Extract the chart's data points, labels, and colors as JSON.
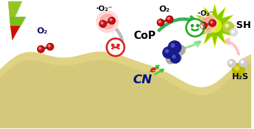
{
  "bg_color": "#ffffff",
  "surface_color": "#d4c87a",
  "surface_highlight": "#e8d98a",
  "surface_shadow": "#c4b860",
  "o2_label_left": "O₂",
  "o2_label_mid": "O₂",
  "o2_rad_label": "·O₂⁻",
  "o2_rad_label2": "·O₂⁻",
  "cop_label": "CoP",
  "cn_label": "CN",
  "sh_label": "SH",
  "h2s_label": "H₂S",
  "e_label": "e⁻",
  "atom_red": "#cc1111",
  "atom_red2": "#ee3333",
  "atom_blue_dark": "#1a1a8c",
  "atom_blue2": "#3344bb",
  "atom_gray": "#999999",
  "atom_gray2": "#bbbbbb",
  "atom_yellow_s": "#cccc00",
  "atom_white_h": "#e0e0e0",
  "arrow_gray": "#aaaaaa",
  "arrow_green_dark": "#22aa44",
  "arrow_green_light": "#88dd88",
  "arrow_pink": "#ffbbbb",
  "star_green": "#88cc00",
  "star_yellow": "#eeff00",
  "glow_red": "#ff8888",
  "glow_pink": "#ffcccc"
}
